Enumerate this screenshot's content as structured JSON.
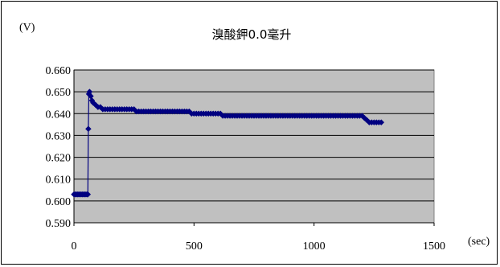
{
  "chart_data": {
    "type": "line",
    "title": "溴酸鉀0.0毫升",
    "ylabel": "(V)",
    "xlabel": "(sec)",
    "xlim": [
      0,
      1500
    ],
    "ylim": [
      0.59,
      0.66
    ],
    "x_ticks": [
      "0",
      "500",
      "1000",
      "1500"
    ],
    "y_ticks": [
      "0.660",
      "0.650",
      "0.640",
      "0.630",
      "0.620",
      "0.610",
      "0.600",
      "0.590"
    ],
    "grid": true,
    "plot_background": "#c0c0c0",
    "legend": "none",
    "series": [
      {
        "color": "#000080",
        "marker": "diamond",
        "points": [
          [
            0,
            0.603
          ],
          [
            5,
            0.603
          ],
          [
            10,
            0.603
          ],
          [
            15,
            0.603
          ],
          [
            20,
            0.603
          ],
          [
            25,
            0.603
          ],
          [
            30,
            0.603
          ],
          [
            35,
            0.603
          ],
          [
            40,
            0.603
          ],
          [
            45,
            0.603
          ],
          [
            50,
            0.603
          ],
          [
            55,
            0.603
          ],
          [
            58,
            0.603
          ],
          [
            60,
            0.633
          ],
          [
            62,
            0.649
          ],
          [
            65,
            0.65
          ],
          [
            70,
            0.648
          ],
          [
            75,
            0.646
          ],
          [
            80,
            0.645
          ],
          [
            90,
            0.644
          ],
          [
            100,
            0.643
          ],
          [
            110,
            0.643
          ],
          [
            120,
            0.642
          ],
          [
            130,
            0.642
          ],
          [
            140,
            0.642
          ],
          [
            150,
            0.642
          ],
          [
            160,
            0.642
          ],
          [
            170,
            0.642
          ],
          [
            180,
            0.642
          ],
          [
            190,
            0.642
          ],
          [
            200,
            0.642
          ],
          [
            210,
            0.642
          ],
          [
            220,
            0.642
          ],
          [
            230,
            0.642
          ],
          [
            240,
            0.642
          ],
          [
            250,
            0.642
          ],
          [
            260,
            0.641
          ],
          [
            270,
            0.641
          ],
          [
            280,
            0.641
          ],
          [
            290,
            0.641
          ],
          [
            300,
            0.641
          ],
          [
            310,
            0.641
          ],
          [
            320,
            0.641
          ],
          [
            330,
            0.641
          ],
          [
            340,
            0.641
          ],
          [
            350,
            0.641
          ],
          [
            360,
            0.641
          ],
          [
            370,
            0.641
          ],
          [
            380,
            0.641
          ],
          [
            390,
            0.641
          ],
          [
            400,
            0.641
          ],
          [
            410,
            0.641
          ],
          [
            420,
            0.641
          ],
          [
            430,
            0.641
          ],
          [
            440,
            0.641
          ],
          [
            450,
            0.641
          ],
          [
            460,
            0.641
          ],
          [
            470,
            0.641
          ],
          [
            480,
            0.641
          ],
          [
            490,
            0.64
          ],
          [
            500,
            0.64
          ],
          [
            510,
            0.64
          ],
          [
            520,
            0.64
          ],
          [
            530,
            0.64
          ],
          [
            540,
            0.64
          ],
          [
            550,
            0.64
          ],
          [
            560,
            0.64
          ],
          [
            570,
            0.64
          ],
          [
            580,
            0.64
          ],
          [
            590,
            0.64
          ],
          [
            600,
            0.64
          ],
          [
            610,
            0.64
          ],
          [
            620,
            0.639
          ],
          [
            630,
            0.639
          ],
          [
            640,
            0.639
          ],
          [
            650,
            0.639
          ],
          [
            660,
            0.639
          ],
          [
            670,
            0.639
          ],
          [
            680,
            0.639
          ],
          [
            690,
            0.639
          ],
          [
            700,
            0.639
          ],
          [
            710,
            0.639
          ],
          [
            720,
            0.639
          ],
          [
            730,
            0.639
          ],
          [
            740,
            0.639
          ],
          [
            750,
            0.639
          ],
          [
            760,
            0.639
          ],
          [
            770,
            0.639
          ],
          [
            780,
            0.639
          ],
          [
            790,
            0.639
          ],
          [
            800,
            0.639
          ],
          [
            810,
            0.639
          ],
          [
            820,
            0.639
          ],
          [
            830,
            0.639
          ],
          [
            840,
            0.639
          ],
          [
            850,
            0.639
          ],
          [
            860,
            0.639
          ],
          [
            870,
            0.639
          ],
          [
            880,
            0.639
          ],
          [
            890,
            0.639
          ],
          [
            900,
            0.639
          ],
          [
            910,
            0.639
          ],
          [
            920,
            0.639
          ],
          [
            930,
            0.639
          ],
          [
            940,
            0.639
          ],
          [
            950,
            0.639
          ],
          [
            960,
            0.639
          ],
          [
            970,
            0.639
          ],
          [
            980,
            0.639
          ],
          [
            990,
            0.639
          ],
          [
            1000,
            0.639
          ],
          [
            1010,
            0.639
          ],
          [
            1020,
            0.639
          ],
          [
            1030,
            0.639
          ],
          [
            1040,
            0.639
          ],
          [
            1050,
            0.639
          ],
          [
            1060,
            0.639
          ],
          [
            1070,
            0.639
          ],
          [
            1080,
            0.639
          ],
          [
            1090,
            0.639
          ],
          [
            1100,
            0.639
          ],
          [
            1110,
            0.639
          ],
          [
            1120,
            0.639
          ],
          [
            1130,
            0.639
          ],
          [
            1140,
            0.639
          ],
          [
            1150,
            0.639
          ],
          [
            1160,
            0.639
          ],
          [
            1170,
            0.639
          ],
          [
            1180,
            0.639
          ],
          [
            1190,
            0.639
          ],
          [
            1200,
            0.639
          ],
          [
            1210,
            0.638
          ],
          [
            1220,
            0.637
          ],
          [
            1230,
            0.636
          ],
          [
            1240,
            0.636
          ],
          [
            1250,
            0.636
          ],
          [
            1260,
            0.636
          ],
          [
            1270,
            0.636
          ],
          [
            1280,
            0.636
          ]
        ]
      }
    ]
  }
}
